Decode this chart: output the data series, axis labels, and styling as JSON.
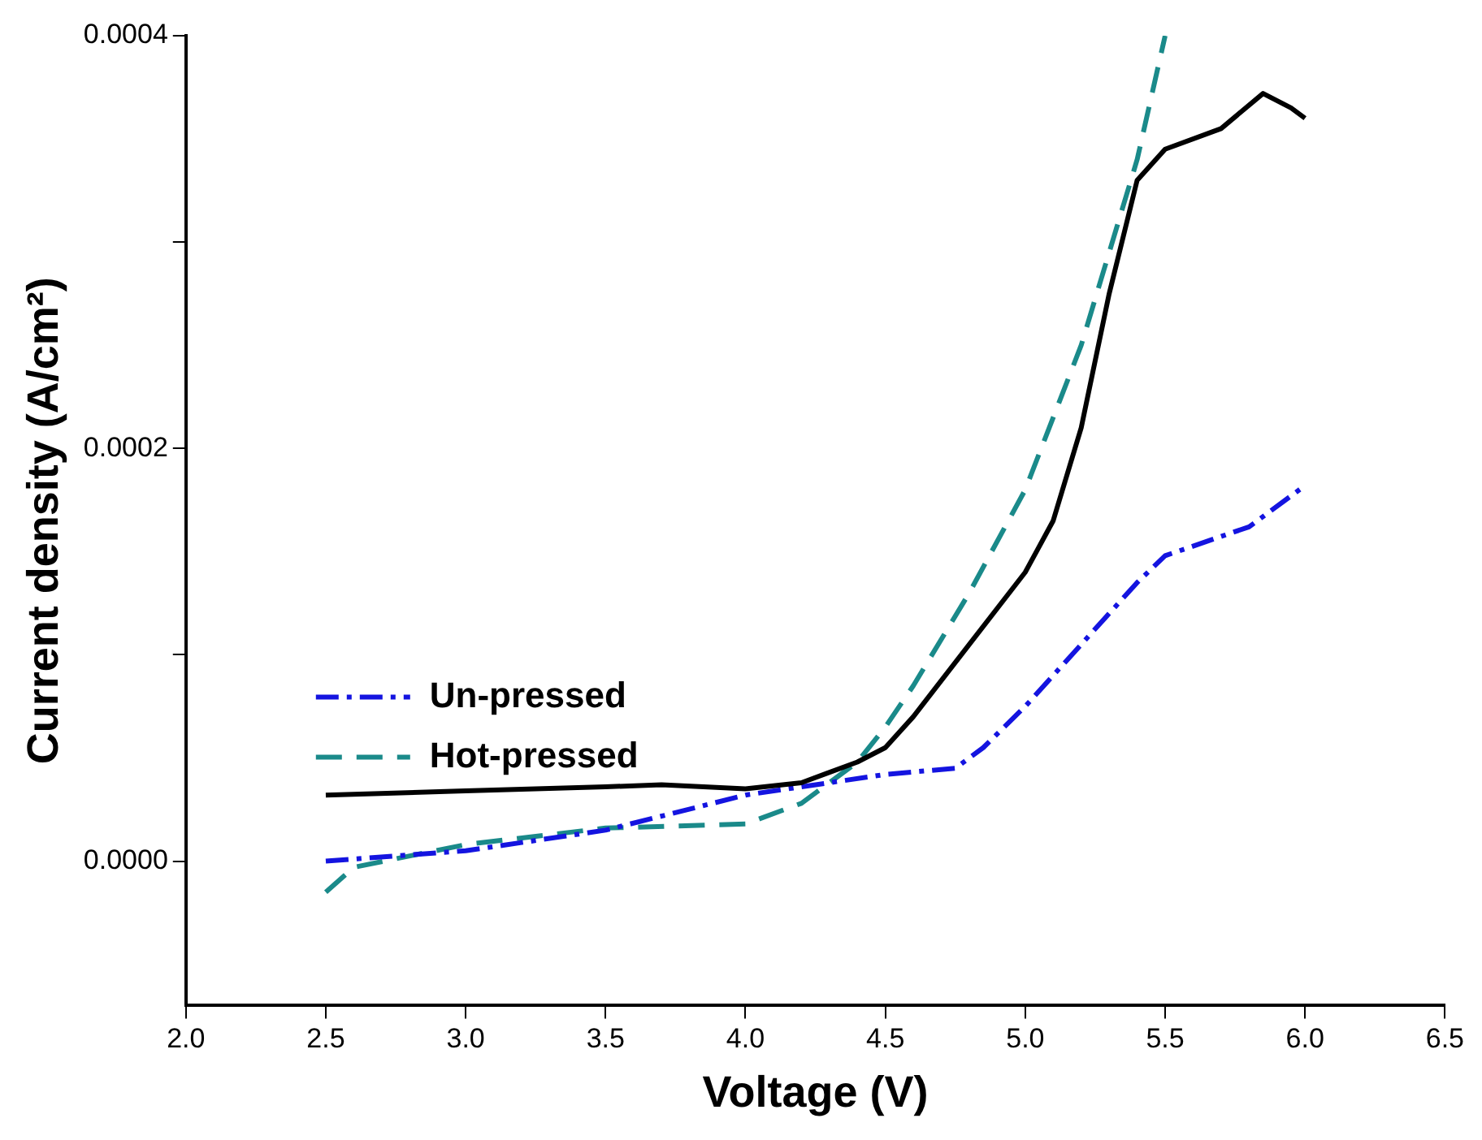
{
  "chart_data": {
    "type": "line",
    "xlabel": "Voltage (V)",
    "ylabel": "Current density (A/cm²)",
    "xlim": [
      2.0,
      6.5
    ],
    "ylim": [
      -7e-05,
      0.0004
    ],
    "xticks": [
      {
        "value": 2,
        "label": "2.0"
      },
      {
        "value": 2.5,
        "label": "2.5"
      },
      {
        "value": 3,
        "label": "3.0"
      },
      {
        "value": 3.5,
        "label": "3.5"
      },
      {
        "value": 4,
        "label": "4.0"
      },
      {
        "value": 4.5,
        "label": "4.5"
      },
      {
        "value": 5,
        "label": "5.0"
      },
      {
        "value": 5.5,
        "label": "5.5"
      },
      {
        "value": 6,
        "label": "6.0"
      },
      {
        "value": 6.5,
        "label": "6.5"
      }
    ],
    "yticks": [
      {
        "value": 0,
        "label": "0.0000"
      },
      {
        "value": 0.0001,
        "label": null
      },
      {
        "value": 0.0002,
        "label": "0.0002"
      },
      {
        "value": 0.0003,
        "label": null
      },
      {
        "value": 0.0004,
        "label": "0.0004"
      }
    ],
    "grid": false,
    "legend": "left",
    "marker": "none",
    "series": [
      {
        "color": "#000000",
        "line_style": "solid",
        "x": [
          2.5,
          3.0,
          3.5,
          3.7,
          4.0,
          4.2,
          4.4,
          4.5,
          4.6,
          4.8,
          5.0,
          5.1,
          5.2,
          5.3,
          5.4,
          5.5,
          5.7,
          5.85,
          5.95,
          6.0
        ],
        "values": [
          3.2e-05,
          3.4e-05,
          3.6e-05,
          3.7e-05,
          3.5e-05,
          3.8e-05,
          4.8e-05,
          5.5e-05,
          7e-05,
          0.000105,
          0.00014,
          0.000165,
          0.00021,
          0.000275,
          0.00033,
          0.000345,
          0.000355,
          0.000372,
          0.000365,
          0.00036
        ]
      },
      {
        "name": "Un-pressed",
        "color": "#1414e0",
        "line_style": "dashdot",
        "x": [
          2.5,
          3.0,
          3.5,
          4.0,
          4.5,
          4.75,
          4.85,
          5.0,
          5.2,
          5.4,
          5.5,
          5.8,
          6.0
        ],
        "values": [
          0,
          5e-06,
          1.5e-05,
          3.2e-05,
          4.2e-05,
          4.5e-05,
          5.5e-05,
          7.5e-05,
          0.000105,
          0.000135,
          0.000148,
          0.000162,
          0.000182
        ]
      },
      {
        "name": "Hot-pressed",
        "color": "#1a8a8a",
        "line_style": "dashed",
        "x": [
          2.5,
          2.6,
          3.0,
          3.5,
          4.0,
          4.2,
          4.4,
          4.5,
          4.6,
          4.8,
          5.0,
          5.2,
          5.4,
          5.5
        ],
        "values": [
          -1.5e-05,
          -3e-06,
          8e-06,
          1.6e-05,
          1.8e-05,
          2.8e-05,
          4.8e-05,
          6.5e-05,
          8.5e-05,
          0.00013,
          0.00018,
          0.00025,
          0.00034,
          0.0004
        ]
      }
    ]
  }
}
